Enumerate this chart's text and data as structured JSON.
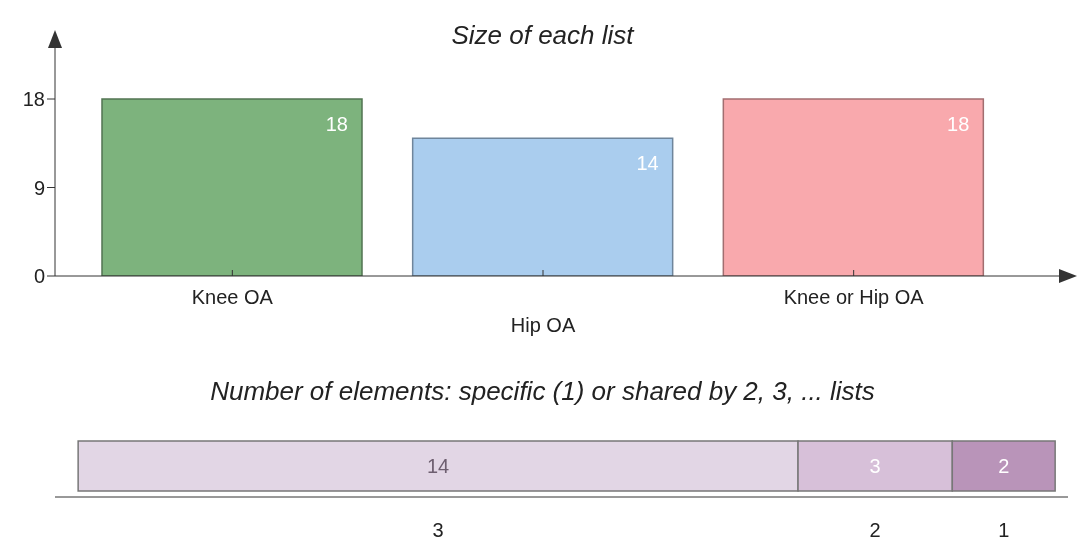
{
  "chart_data": [
    {
      "type": "bar",
      "title": "Size of each list",
      "categories": [
        "Knee OA",
        "Hip OA",
        "Knee or Hip OA"
      ],
      "values": [
        18,
        14,
        18
      ],
      "colors": [
        "#7db37d",
        "#aacdee",
        "#f9a9ad"
      ],
      "ylim": [
        0,
        24
      ],
      "yticks": [
        0,
        9,
        18
      ],
      "data_labels": true
    },
    {
      "type": "bar",
      "title": "Number of elements: specific (1) or shared by 2, 3, ... lists",
      "orientation": "horizontal",
      "stacked": true,
      "categories": [
        null
      ],
      "series": [
        {
          "name": "3",
          "color": "#e2d6e5",
          "values": [
            14
          ]
        },
        {
          "name": "2",
          "color": "#d7c0d9",
          "values": [
            3
          ]
        },
        {
          "name": "1",
          "color": "#b994b9",
          "values": [
            2
          ]
        }
      ],
      "xlim": [
        -0.45,
        19.25
      ],
      "data_labels": true
    }
  ]
}
